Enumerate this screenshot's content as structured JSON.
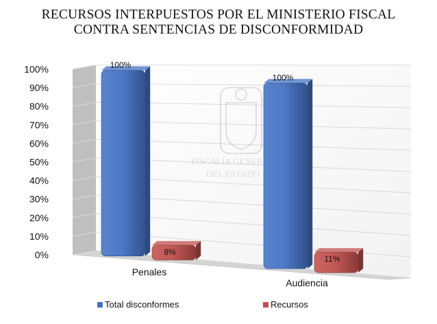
{
  "title_lines": [
    "RECURSOS INTERPUESTOS POR EL MINISTERIO FISCAL",
    "CONTRA SENTENCIAS DE DISCONFORMIDAD"
  ],
  "watermark": {
    "text_lines": [
      "FISCALÍA GENERAL",
      "DEL ESTADO"
    ],
    "icon": "coat-of-arms-icon"
  },
  "colors": {
    "series_1": "#4472C4",
    "series_2": "#C0504D"
  },
  "chart_data": {
    "type": "bar",
    "categories": [
      "Penales",
      "Audiencia"
    ],
    "series": [
      {
        "name": "Total disconformes",
        "values": [
          100,
          100
        ],
        "labels": [
          "100%",
          "100%"
        ]
      },
      {
        "name": "Recursos",
        "values": [
          8,
          11
        ],
        "labels": [
          "8%",
          "11%"
        ]
      }
    ],
    "yticks": [
      "0%",
      "10%",
      "20%",
      "30%",
      "40%",
      "50%",
      "60%",
      "70%",
      "80%",
      "90%",
      "100%"
    ],
    "ylim": [
      0,
      100
    ],
    "grid": true,
    "legend_position": "bottom",
    "three_d": true
  }
}
